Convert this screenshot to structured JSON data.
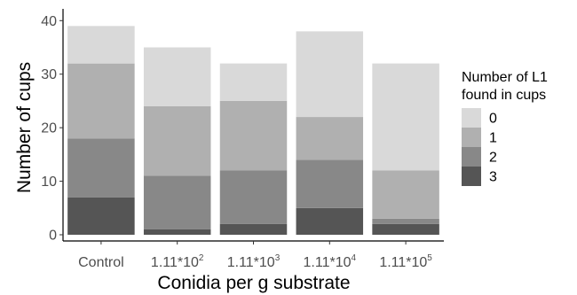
{
  "chart_data": {
    "type": "bar",
    "stacked": true,
    "xlabel": "Conidia per g substrate",
    "ylabel": "Number of cups",
    "ylim": [
      0,
      40
    ],
    "yticks": [
      "0",
      "10",
      "20",
      "30",
      "40"
    ],
    "grid": false,
    "categories": [
      {
        "base": "Control",
        "sup": ""
      },
      {
        "base": "1.11*10",
        "sup": "2"
      },
      {
        "base": "1.11*10",
        "sup": "3"
      },
      {
        "base": "1.11*10",
        "sup": "4"
      },
      {
        "base": "1.11*10",
        "sup": "5"
      }
    ],
    "legend": {
      "title_lines": [
        "Number of L1",
        "found in cups"
      ],
      "placement": "right"
    },
    "series": [
      {
        "name": "3",
        "color": "#555555",
        "values": [
          7,
          1,
          2,
          5,
          2
        ]
      },
      {
        "name": "2",
        "color": "#888888",
        "values": [
          11,
          10,
          10,
          9,
          1
        ]
      },
      {
        "name": "1",
        "color": "#b0b0b0",
        "values": [
          14,
          13,
          13,
          8,
          9
        ]
      },
      {
        "name": "0",
        "color": "#d9d9d9",
        "values": [
          7,
          11,
          7,
          16,
          20
        ]
      }
    ],
    "legend_order": [
      "0",
      "1",
      "2",
      "3"
    ]
  }
}
